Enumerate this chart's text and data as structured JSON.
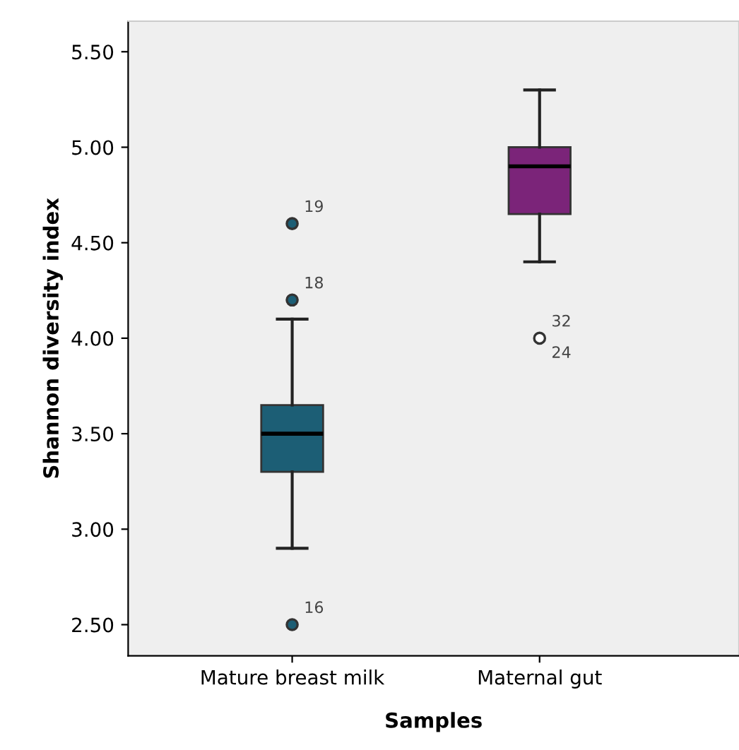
{
  "chart_data": {
    "type": "box",
    "xlabel": "Samples",
    "ylabel": "Shannon diversity index",
    "categories": [
      "Mature breast milk",
      "Maternal gut"
    ],
    "boxes": [
      {
        "low": 2.9,
        "q1": 3.3,
        "median": 3.5,
        "q3": 3.65,
        "high": 4.1
      },
      {
        "low": 4.4,
        "q1": 4.65,
        "median": 4.9,
        "q3": 5.0,
        "high": 5.3
      }
    ],
    "series": [
      {
        "type": "scatter",
        "x": [
          "Mature breast milk",
          "Mature breast milk",
          "Mature breast milk"
        ],
        "values": [
          4.6,
          4.2,
          2.5
        ],
        "color": "#1c5e75"
      },
      {
        "type": "scatter",
        "x": [
          "Maternal gut"
        ],
        "values": [
          4.0
        ],
        "color": "#ffffff"
      }
    ],
    "marker": "circle",
    "colors": [
      "#1c5e75",
      "#7b2479"
    ],
    "ylim": [
      2.337,
      5.66
    ],
    "yticks": [
      {
        "value": 2.5,
        "label": "2.50"
      },
      {
        "value": 3.0,
        "label": "3.00"
      },
      {
        "value": 3.5,
        "label": "3.50"
      },
      {
        "value": 4.0,
        "label": "4.00"
      },
      {
        "value": 4.5,
        "label": "4.50"
      },
      {
        "value": 5.0,
        "label": "5.00"
      },
      {
        "value": 5.5,
        "label": "5.50"
      }
    ],
    "annotations": [
      {
        "text": "19",
        "x": "Mature breast milk",
        "y": 4.6
      },
      {
        "text": "18",
        "x": "Mature breast milk",
        "y": 4.2
      },
      {
        "text": "16",
        "x": "Mature breast milk",
        "y": 2.5
      },
      {
        "text": "32",
        "x": "Maternal gut",
        "y": 4.0
      },
      {
        "text": "24",
        "x": "Maternal gut",
        "y": 4.0
      }
    ],
    "grid": false,
    "legend": false
  }
}
